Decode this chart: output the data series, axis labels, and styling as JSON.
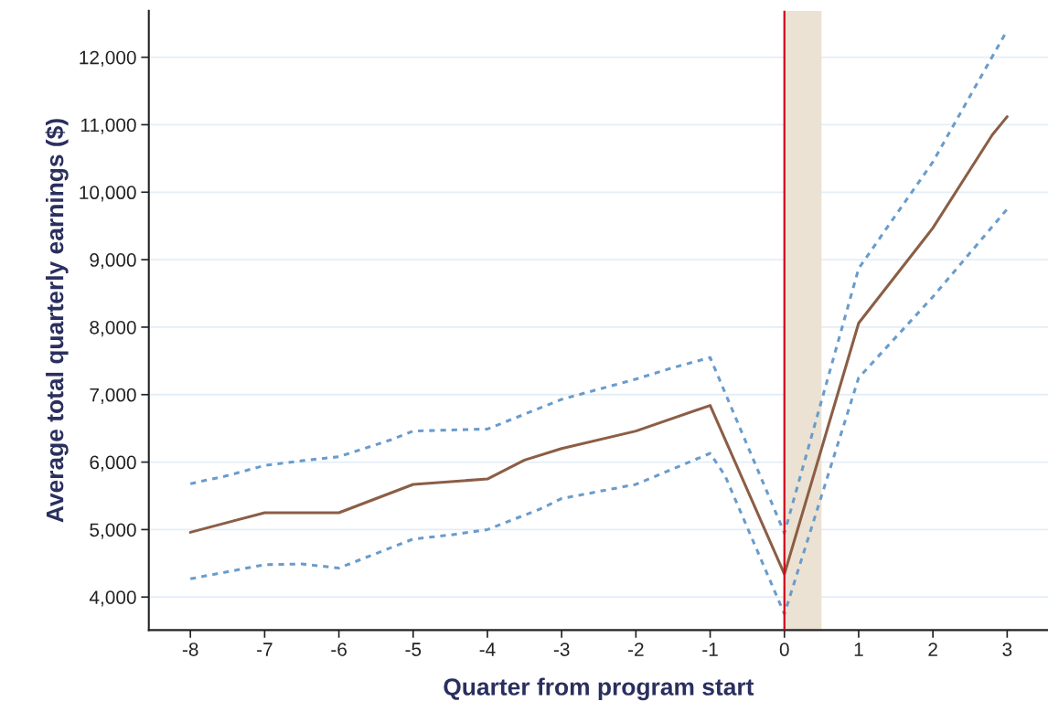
{
  "chart_data": {
    "type": "line",
    "xlabel": "Quarter from program start",
    "ylabel": "Average total quarterly earnings ($)",
    "xlim": [
      -8.56,
      3.55
    ],
    "ylim": [
      3510,
      12690
    ],
    "xticks": [
      -8,
      -7,
      -6,
      -5,
      -4,
      -3,
      -2,
      -1,
      0,
      1,
      2,
      3
    ],
    "yticks": [
      {
        "value": 4000,
        "label": "4,000"
      },
      {
        "value": 5000,
        "label": "5,000"
      },
      {
        "value": 6000,
        "label": "6,000"
      },
      {
        "value": 7000,
        "label": "7,000"
      },
      {
        "value": 8000,
        "label": "8,000"
      },
      {
        "value": 9000,
        "label": "9,000"
      },
      {
        "value": 10000,
        "label": "10,000"
      },
      {
        "value": 11000,
        "label": "11,000"
      },
      {
        "value": 12000,
        "label": "12,000"
      }
    ],
    "grid": "y",
    "series": [
      {
        "color": "#6a9ccb",
        "line_style": "dotted",
        "x": [
          -8,
          -7.5,
          -7,
          -6.5,
          -6,
          -5.3,
          -5,
          -4,
          -3,
          -2,
          -1.5,
          -1,
          0,
          1,
          2,
          3
        ],
        "values": [
          5680,
          5800,
          5950,
          6020,
          6080,
          6330,
          6460,
          6490,
          6930,
          7230,
          7400,
          7550,
          4950,
          8870,
          10450,
          12400
        ]
      },
      {
        "color": "#6a9ccb",
        "line_style": "dotted",
        "x": [
          -8,
          -7,
          -6.5,
          -6,
          -5,
          -4.5,
          -4,
          -3.3,
          -3,
          -2,
          -1,
          -0.8,
          0,
          1,
          2,
          3
        ],
        "values": [
          4270,
          4480,
          4490,
          4430,
          4860,
          4920,
          5000,
          5300,
          5460,
          5670,
          6130,
          5800,
          3750,
          7250,
          8450,
          9750
        ]
      },
      {
        "color": "#8b5e45",
        "line_style": "solid",
        "x": [
          -8,
          -7,
          -6,
          -5,
          -4,
          -3.5,
          -3,
          -2,
          -1,
          0,
          1,
          2,
          2.8,
          3
        ],
        "values": [
          4960,
          5250,
          5250,
          5670,
          5750,
          6030,
          6200,
          6460,
          6840,
          4340,
          8060,
          9470,
          10850,
          11120
        ]
      }
    ],
    "ref_lines": [
      {
        "axis": "x",
        "value": 0,
        "color": "#d0021b"
      }
    ],
    "bands": [
      {
        "axis": "x",
        "from": 0,
        "to": 0.5,
        "color": "#ece2d4"
      }
    ]
  }
}
